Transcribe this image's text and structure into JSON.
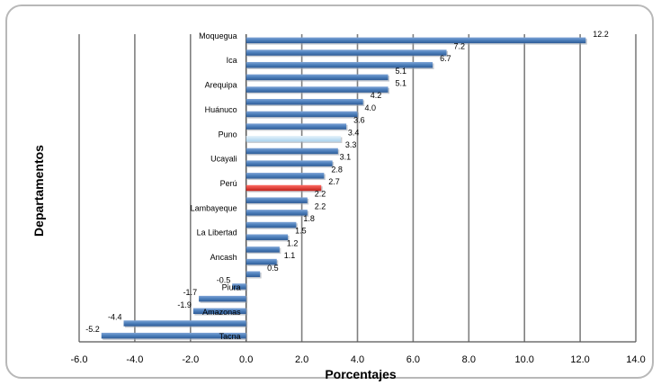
{
  "chart_data": {
    "type": "bar",
    "orientation": "horizontal",
    "title": "",
    "xlabel": "Porcentajes",
    "ylabel": "Departamentos",
    "xlim": [
      -6,
      14
    ],
    "xticks": [
      "-6.0",
      "-4.0",
      "-2.0",
      "0.0",
      "2.0",
      "4.0",
      "6.0",
      "8.0",
      "10.0",
      "12.0",
      "14.0"
    ],
    "grid": "vertical",
    "bar_color": "#4f81bd",
    "highlight_colors": {
      "Perú": "#e0302a",
      "Puno": "#c6e3f3"
    },
    "bars": [
      {
        "label": "Moquegua",
        "value": 12.2,
        "text": "12.2"
      },
      {
        "label": "",
        "value": 7.2,
        "text": "7.2"
      },
      {
        "label": "Ica",
        "value": 6.7,
        "text": "6.7"
      },
      {
        "label": "",
        "value": 5.1,
        "text": "5.1"
      },
      {
        "label": "Arequipa",
        "value": 5.1,
        "text": "5.1"
      },
      {
        "label": "",
        "value": 4.2,
        "text": "4.2"
      },
      {
        "label": "Huánuco",
        "value": 4.0,
        "text": "4.0"
      },
      {
        "label": "",
        "value": 3.6,
        "text": "3.6"
      },
      {
        "label": "Puno",
        "value": 3.4,
        "text": "3.4"
      },
      {
        "label": "",
        "value": 3.3,
        "text": "3.3"
      },
      {
        "label": "Ucayali",
        "value": 3.1,
        "text": "3.1"
      },
      {
        "label": "",
        "value": 2.8,
        "text": "2.8"
      },
      {
        "label": "Perú",
        "value": 2.7,
        "text": "2.7"
      },
      {
        "label": "",
        "value": 2.2,
        "text": "2.2"
      },
      {
        "label": "Lambayeque",
        "value": 2.2,
        "text": "2.2"
      },
      {
        "label": "",
        "value": 1.8,
        "text": "1.8"
      },
      {
        "label": "La Libertad",
        "value": 1.5,
        "text": "1.5"
      },
      {
        "label": "",
        "value": 1.2,
        "text": "1.2"
      },
      {
        "label": "Ancash",
        "value": 1.1,
        "text": "1.1"
      },
      {
        "label": "",
        "value": 0.5,
        "text": "0.5"
      },
      {
        "label": "Piura",
        "value": -0.5,
        "text": "-0.5"
      },
      {
        "label": "",
        "value": -1.7,
        "text": "-1.7"
      },
      {
        "label": "Amazonas",
        "value": -1.9,
        "text": "-1.9"
      },
      {
        "label": "",
        "value": -4.4,
        "text": "-4.4"
      },
      {
        "label": "Tacna",
        "value": -5.2,
        "text": "-5.2"
      }
    ]
  }
}
